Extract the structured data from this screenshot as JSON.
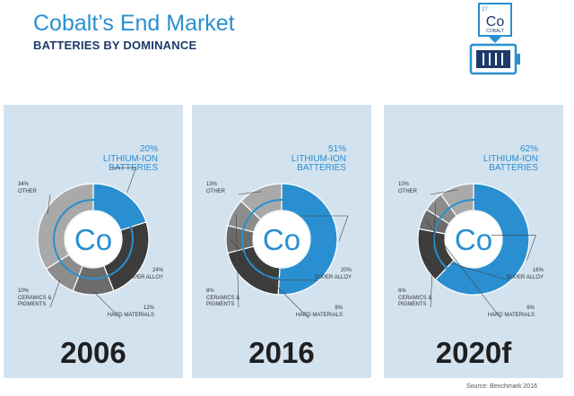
{
  "header": {
    "title": "Cobalt’s End Market",
    "subtitle": "BATTERIES BY DOMINANCE"
  },
  "logo": {
    "number": "27",
    "symbol": "Co",
    "name": "COBALT",
    "battery_icon": "battery-icon"
  },
  "colors": {
    "lithium_ion": "#2a8fd0",
    "super_alloy": "#3c3c3c",
    "hard_materials": "#6b6b6b",
    "ceramics": "#8c8c8c",
    "other": "#a9a9a9",
    "panel_bg": "#d3e2ef",
    "accent": "#2a8fd0"
  },
  "chart_data": [
    {
      "type": "pie",
      "year": "2006",
      "center_label": "Co",
      "slices": [
        {
          "category": "LITHIUM-ION BATTERIES",
          "value": 20,
          "pct_label": "20%",
          "lines": [
            "LITHIUM-ION",
            "BATTERIES"
          ]
        },
        {
          "category": "SUPER ALLOY",
          "value": 24,
          "pct_label": "24%",
          "lines": [
            "SUPER ALLOY"
          ]
        },
        {
          "category": "HARD MATERIALS",
          "value": 12,
          "pct_label": "12%",
          "lines": [
            "HARD MATERIALS"
          ]
        },
        {
          "category": "CERAMICS & PIGMENTS",
          "value": 10,
          "pct_label": "10%",
          "lines": [
            "CERAMICS &",
            "PIGMENTS"
          ]
        },
        {
          "category": "OTHER",
          "value": 34,
          "pct_label": "34%",
          "lines": [
            "OTHER"
          ]
        }
      ]
    },
    {
      "type": "pie",
      "year": "2016",
      "center_label": "Co",
      "slices": [
        {
          "category": "LITHIUM-ION BATTERIES",
          "value": 51,
          "pct_label": "51%",
          "lines": [
            "LITHIUM-ION",
            "BATTERIES"
          ]
        },
        {
          "category": "SUPER ALLOY",
          "value": 20,
          "pct_label": "20%",
          "lines": [
            "SUPER ALLOY"
          ]
        },
        {
          "category": "HARD MATERIALS",
          "value": 8,
          "pct_label": "8%",
          "lines": [
            "HARD MATERIALS"
          ]
        },
        {
          "category": "CERAMICS & PIGMENTS",
          "value": 8,
          "pct_label": "8%",
          "lines": [
            "CERAMICS &",
            "PIGMENTS"
          ]
        },
        {
          "category": "OTHER",
          "value": 13,
          "pct_label": "13%",
          "lines": [
            "OTHER"
          ]
        }
      ]
    },
    {
      "type": "pie",
      "year": "2020f",
      "center_label": "Co",
      "slices": [
        {
          "category": "LITHIUM-ION BATTERIES",
          "value": 62,
          "pct_label": "62%",
          "lines": [
            "LITHIUM-ION",
            "BATTERIES"
          ]
        },
        {
          "category": "SUPER ALLOY",
          "value": 16,
          "pct_label": "16%",
          "lines": [
            "SUPER ALLOY"
          ]
        },
        {
          "category": "HARD MATERIALS",
          "value": 6,
          "pct_label": "6%",
          "lines": [
            "HARD MATERIALS"
          ]
        },
        {
          "category": "CERAMICS & PIGMENTS",
          "value": 6,
          "pct_label": "6%",
          "lines": [
            "CERAMICS &",
            "PIGMENTS"
          ]
        },
        {
          "category": "OTHER",
          "value": 10,
          "pct_label": "10%",
          "lines": [
            "OTHER"
          ]
        }
      ]
    }
  ],
  "source": "Source: Benchmark 2016"
}
